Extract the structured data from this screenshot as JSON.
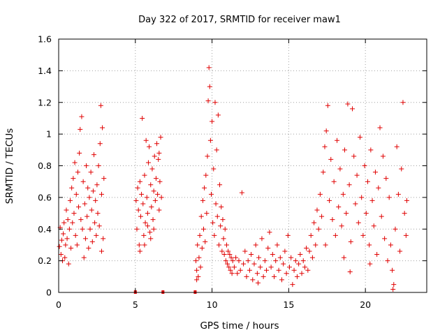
{
  "chart_data": {
    "type": "scatter",
    "title": "Day 322 of 2017, SRMTID for receiver maw1",
    "xlabel": "GPS time / hours",
    "ylabel": "SRMTID / TECUs",
    "xlim": [
      0,
      24
    ],
    "ylim": [
      0,
      1.6
    ],
    "xticks": [
      0,
      5,
      10,
      15,
      20
    ],
    "xtick_labels": [
      "0",
      "5",
      "10",
      "15",
      "20"
    ],
    "yticks": [
      0,
      0.2,
      0.4,
      0.6,
      0.8,
      1.0,
      1.2,
      1.4,
      1.6
    ],
    "ytick_labels": [
      "0",
      "0.2",
      "0.4",
      "0.6",
      "0.8",
      "1",
      "1.2",
      "1.4",
      "1.6"
    ],
    "grid": true,
    "marker": "+",
    "color": "#e00000",
    "gap_markers": [
      {
        "x": 5.0,
        "y": 0
      },
      {
        "x": 6.8,
        "y": 0
      },
      {
        "x": 8.9,
        "y": 0
      }
    ],
    "segments": [
      {
        "x_range": [
          0.0,
          3.0
        ],
        "points": [
          [
            0.05,
            0.29
          ],
          [
            0.1,
            0.41
          ],
          [
            0.15,
            0.24
          ],
          [
            0.2,
            0.33
          ],
          [
            0.25,
            0.2
          ],
          [
            0.3,
            0.37
          ],
          [
            0.35,
            0.44
          ],
          [
            0.4,
            0.22
          ],
          [
            0.45,
            0.3
          ],
          [
            0.5,
            0.52
          ],
          [
            0.55,
            0.34
          ],
          [
            0.6,
            0.46
          ],
          [
            0.65,
            0.18
          ],
          [
            0.7,
            0.4
          ],
          [
            0.75,
            0.58
          ],
          [
            0.8,
            0.28
          ],
          [
            0.85,
            0.66
          ],
          [
            0.9,
            0.44
          ],
          [
            0.95,
            0.72
          ],
          [
            1.0,
            0.5
          ],
          [
            1.05,
            0.82
          ],
          [
            1.1,
            0.36
          ],
          [
            1.15,
            0.62
          ],
          [
            1.2,
            0.3
          ],
          [
            1.25,
            0.76
          ],
          [
            1.3,
            0.54
          ],
          [
            1.35,
            0.88
          ],
          [
            1.4,
            1.03
          ],
          [
            1.45,
            0.46
          ],
          [
            1.5,
            1.11
          ],
          [
            1.55,
            0.4
          ],
          [
            1.6,
            0.7
          ],
          [
            1.65,
            0.22
          ],
          [
            1.7,
            0.56
          ],
          [
            1.75,
            0.34
          ],
          [
            1.8,
            0.8
          ],
          [
            1.85,
            0.48
          ],
          [
            1.9,
            0.66
          ],
          [
            1.95,
            0.28
          ],
          [
            2.0,
            0.6
          ],
          [
            2.05,
            0.4
          ],
          [
            2.1,
            0.76
          ],
          [
            2.15,
            0.52
          ],
          [
            2.2,
            0.32
          ],
          [
            2.25,
            0.64
          ],
          [
            2.3,
            0.87
          ],
          [
            2.35,
            0.44
          ],
          [
            2.4,
            0.58
          ],
          [
            2.45,
            0.36
          ],
          [
            2.5,
            0.68
          ],
          [
            2.55,
            0.5
          ],
          [
            2.6,
            0.8
          ],
          [
            2.65,
            0.42
          ],
          [
            2.7,
            0.94
          ],
          [
            2.75,
            1.18
          ],
          [
            2.8,
            0.62
          ],
          [
            2.85,
            1.04
          ],
          [
            2.9,
            0.34
          ],
          [
            2.95,
            0.72
          ],
          [
            2.8,
            0.26
          ]
        ]
      },
      {
        "x_range": [
          5.0,
          6.8
        ],
        "points": [
          [
            5.05,
            0.58
          ],
          [
            5.1,
            0.4
          ],
          [
            5.15,
            0.66
          ],
          [
            5.2,
            0.52
          ],
          [
            5.25,
            0.3
          ],
          [
            5.3,
            0.7
          ],
          [
            5.35,
            0.48
          ],
          [
            5.4,
            0.62
          ],
          [
            5.45,
            1.1
          ],
          [
            5.5,
            0.56
          ],
          [
            5.55,
            0.36
          ],
          [
            5.6,
            0.74
          ],
          [
            5.65,
            0.44
          ],
          [
            5.7,
            0.96
          ],
          [
            5.75,
            0.6
          ],
          [
            5.8,
            0.5
          ],
          [
            5.85,
            0.82
          ],
          [
            5.9,
            0.92
          ],
          [
            5.95,
            0.38
          ],
          [
            6.0,
            0.68
          ],
          [
            6.05,
            0.54
          ],
          [
            6.1,
            0.78
          ],
          [
            6.15,
            0.46
          ],
          [
            6.2,
            0.64
          ],
          [
            6.25,
            0.86
          ],
          [
            6.3,
            0.58
          ],
          [
            6.35,
            0.72
          ],
          [
            6.4,
            0.94
          ],
          [
            6.45,
            0.62
          ],
          [
            6.5,
            0.84
          ],
          [
            6.55,
            0.52
          ],
          [
            6.6,
            0.7
          ],
          [
            6.65,
            0.98
          ],
          [
            6.7,
            0.6
          ],
          [
            5.3,
            0.26
          ],
          [
            5.6,
            0.3
          ],
          [
            6.0,
            0.34
          ],
          [
            5.8,
            0.42
          ],
          [
            6.2,
            0.4
          ],
          [
            6.55,
            0.88
          ]
        ]
      },
      {
        "x_range": [
          8.9,
          11.4
        ],
        "points": [
          [
            8.95,
            0.2
          ],
          [
            9.0,
            0.14
          ],
          [
            9.05,
            0.3
          ],
          [
            9.1,
            0.1
          ],
          [
            9.15,
            0.22
          ],
          [
            9.2,
            0.36
          ],
          [
            9.25,
            0.16
          ],
          [
            9.3,
            0.48
          ],
          [
            9.35,
            0.28
          ],
          [
            9.4,
            0.58
          ],
          [
            9.45,
            0.4
          ],
          [
            9.5,
            0.66
          ],
          [
            9.55,
            0.32
          ],
          [
            9.6,
            0.74
          ],
          [
            9.65,
            0.5
          ],
          [
            9.7,
            0.86
          ],
          [
            9.75,
            1.21
          ],
          [
            9.8,
            1.42
          ],
          [
            9.85,
            1.3
          ],
          [
            9.9,
            0.96
          ],
          [
            9.95,
            0.62
          ],
          [
            10.0,
            1.08
          ],
          [
            10.05,
            0.44
          ],
          [
            10.1,
            0.78
          ],
          [
            10.15,
            0.36
          ],
          [
            10.2,
            1.2
          ],
          [
            10.25,
            0.56
          ],
          [
            10.3,
            0.9
          ],
          [
            10.35,
            0.48
          ],
          [
            10.4,
            1.12
          ],
          [
            10.45,
            0.3
          ],
          [
            10.5,
            0.68
          ],
          [
            10.55,
            0.42
          ],
          [
            10.6,
            0.54
          ],
          [
            10.65,
            0.26
          ],
          [
            10.7,
            0.46
          ],
          [
            10.75,
            0.34
          ],
          [
            10.8,
            0.24
          ],
          [
            10.85,
            0.4
          ],
          [
            10.9,
            0.2
          ],
          [
            10.95,
            0.3
          ],
          [
            11.0,
            0.18
          ],
          [
            11.05,
            0.26
          ],
          [
            11.1,
            0.16
          ],
          [
            11.15,
            0.24
          ],
          [
            11.2,
            0.14
          ],
          [
            11.25,
            0.22
          ],
          [
            11.3,
            0.12
          ],
          [
            11.35,
            0.2
          ],
          [
            9.0,
            0.08
          ]
        ]
      },
      {
        "x_range": [
          11.4,
          16.3
        ],
        "points": [
          [
            11.45,
            0.16
          ],
          [
            11.55,
            0.22
          ],
          [
            11.65,
            0.12
          ],
          [
            11.75,
            0.2
          ],
          [
            11.85,
            0.14
          ],
          [
            11.95,
            0.63
          ],
          [
            12.05,
            0.18
          ],
          [
            12.15,
            0.26
          ],
          [
            12.25,
            0.1
          ],
          [
            12.35,
            0.2
          ],
          [
            12.45,
            0.14
          ],
          [
            12.55,
            0.24
          ],
          [
            12.65,
            0.08
          ],
          [
            12.75,
            0.18
          ],
          [
            12.85,
            0.3
          ],
          [
            12.95,
            0.12
          ],
          [
            13.05,
            0.22
          ],
          [
            13.15,
            0.16
          ],
          [
            13.25,
            0.34
          ],
          [
            13.35,
            0.1
          ],
          [
            13.45,
            0.2
          ],
          [
            13.55,
            0.14
          ],
          [
            13.65,
            0.28
          ],
          [
            13.75,
            0.38
          ],
          [
            13.85,
            0.16
          ],
          [
            13.95,
            0.24
          ],
          [
            14.05,
            0.1
          ],
          [
            14.15,
            0.2
          ],
          [
            14.25,
            0.3
          ],
          [
            14.35,
            0.14
          ],
          [
            14.45,
            0.22
          ],
          [
            14.55,
            0.08
          ],
          [
            14.65,
            0.18
          ],
          [
            14.75,
            0.26
          ],
          [
            14.85,
            0.12
          ],
          [
            14.95,
            0.36
          ],
          [
            15.05,
            0.16
          ],
          [
            15.15,
            0.22
          ],
          [
            15.25,
            0.05
          ],
          [
            15.35,
            0.14
          ],
          [
            15.45,
            0.2
          ],
          [
            15.55,
            0.1
          ],
          [
            15.65,
            0.18
          ],
          [
            15.75,
            0.24
          ],
          [
            15.85,
            0.12
          ],
          [
            15.95,
            0.2
          ],
          [
            16.05,
            0.16
          ],
          [
            16.15,
            0.28
          ],
          [
            16.25,
            0.14
          ],
          [
            13.0,
            0.06
          ]
        ]
      },
      {
        "x_range": [
          16.3,
          22.8
        ],
        "points": [
          [
            16.35,
            0.26
          ],
          [
            16.45,
            0.36
          ],
          [
            16.55,
            0.22
          ],
          [
            16.65,
            0.44
          ],
          [
            16.75,
            0.3
          ],
          [
            16.85,
            0.52
          ],
          [
            16.95,
            0.4
          ],
          [
            17.05,
            0.62
          ],
          [
            17.15,
            0.48
          ],
          [
            17.25,
            0.76
          ],
          [
            17.35,
            0.92
          ],
          [
            17.45,
            1.02
          ],
          [
            17.55,
            1.18
          ],
          [
            17.65,
            0.58
          ],
          [
            17.75,
            0.84
          ],
          [
            17.85,
            0.46
          ],
          [
            17.95,
            0.7
          ],
          [
            18.05,
            0.36
          ],
          [
            18.15,
            0.96
          ],
          [
            18.25,
            0.54
          ],
          [
            18.35,
            0.78
          ],
          [
            18.45,
            0.42
          ],
          [
            18.55,
            0.62
          ],
          [
            18.65,
            0.9
          ],
          [
            18.75,
            0.5
          ],
          [
            18.85,
            1.19
          ],
          [
            18.95,
            0.68
          ],
          [
            19.05,
            0.32
          ],
          [
            19.15,
            1.16
          ],
          [
            19.25,
            0.86
          ],
          [
            19.35,
            0.56
          ],
          [
            19.45,
            0.74
          ],
          [
            19.55,
            0.44
          ],
          [
            19.65,
            0.98
          ],
          [
            19.75,
            0.6
          ],
          [
            19.85,
            0.36
          ],
          [
            19.95,
            0.8
          ],
          [
            20.05,
            0.5
          ],
          [
            20.15,
            0.7
          ],
          [
            20.25,
            0.3
          ],
          [
            20.35,
            0.9
          ],
          [
            20.45,
            0.58
          ],
          [
            20.55,
            0.42
          ],
          [
            20.65,
            0.76
          ],
          [
            20.75,
            0.24
          ],
          [
            20.85,
            0.66
          ],
          [
            20.95,
            1.04
          ],
          [
            21.05,
            0.48
          ],
          [
            21.15,
            0.86
          ],
          [
            21.25,
            0.34
          ],
          [
            21.35,
            0.72
          ],
          [
            21.45,
            0.2
          ],
          [
            21.55,
            0.6
          ],
          [
            21.65,
            0.3
          ],
          [
            21.75,
            0.14
          ],
          [
            21.85,
            0.05
          ],
          [
            21.95,
            0.4
          ],
          [
            22.05,
            0.92
          ],
          [
            22.15,
            0.62
          ],
          [
            22.25,
            0.26
          ],
          [
            22.35,
            0.78
          ],
          [
            22.45,
            1.2
          ],
          [
            22.55,
            0.5
          ],
          [
            22.65,
            0.36
          ],
          [
            22.7,
            0.58
          ],
          [
            19.0,
            0.13
          ],
          [
            20.3,
            0.18
          ],
          [
            21.8,
            0.02
          ],
          [
            17.4,
            0.3
          ],
          [
            18.6,
            0.22
          ]
        ]
      }
    ]
  }
}
